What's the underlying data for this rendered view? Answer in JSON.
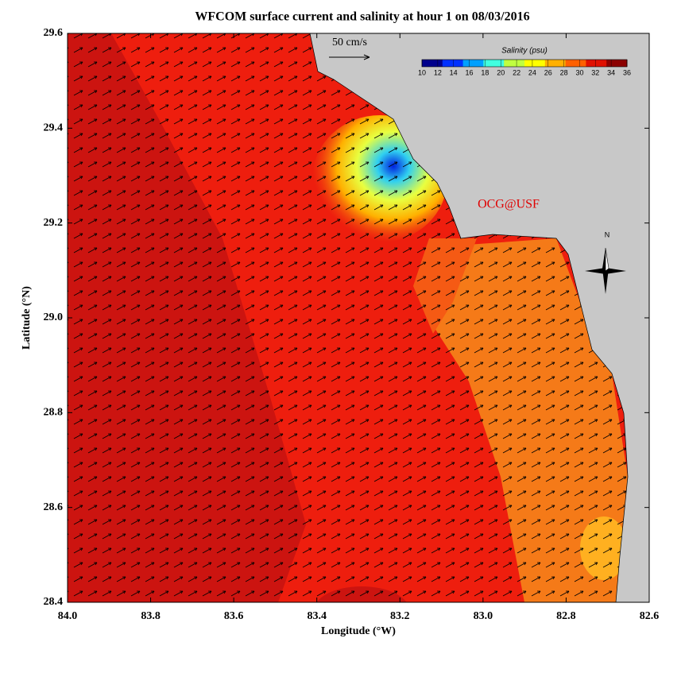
{
  "title": "WFCOM surface current and salinity at hour 1 on 08/03/2016",
  "map": {
    "xlabel": "Longitude (°W)",
    "ylabel": "Latitude (°N)",
    "xlim": [
      84.0,
      82.6
    ],
    "ylim": [
      28.4,
      29.6
    ],
    "xticks": [
      {
        "value": 84.0,
        "label": "84.0"
      },
      83.8,
      83.6,
      83.4,
      83.2,
      {
        "value": 83.0,
        "label": "83.0"
      },
      82.8,
      82.6
    ],
    "yticks": [
      28.4,
      28.6,
      28.8,
      {
        "value": 29.0,
        "label": "29.0"
      },
      29.2,
      29.4,
      29.6
    ]
  },
  "scale_label": "50 cm/s",
  "colorbar": {
    "title": "Salinity (psu)",
    "lim": [
      10,
      36
    ],
    "ticks": [
      10,
      12,
      14,
      16,
      18,
      20,
      22,
      24,
      26,
      28,
      30,
      32,
      34,
      36
    ],
    "colors": [
      "#00008c",
      "#0030ff",
      "#00a0ff",
      "#40ffe0",
      "#c0ff40",
      "#ffff00",
      "#ffb000",
      "#ff6000",
      "#e01000",
      "#8c0000"
    ]
  },
  "credit": "OCG@USF",
  "compass": "N"
}
